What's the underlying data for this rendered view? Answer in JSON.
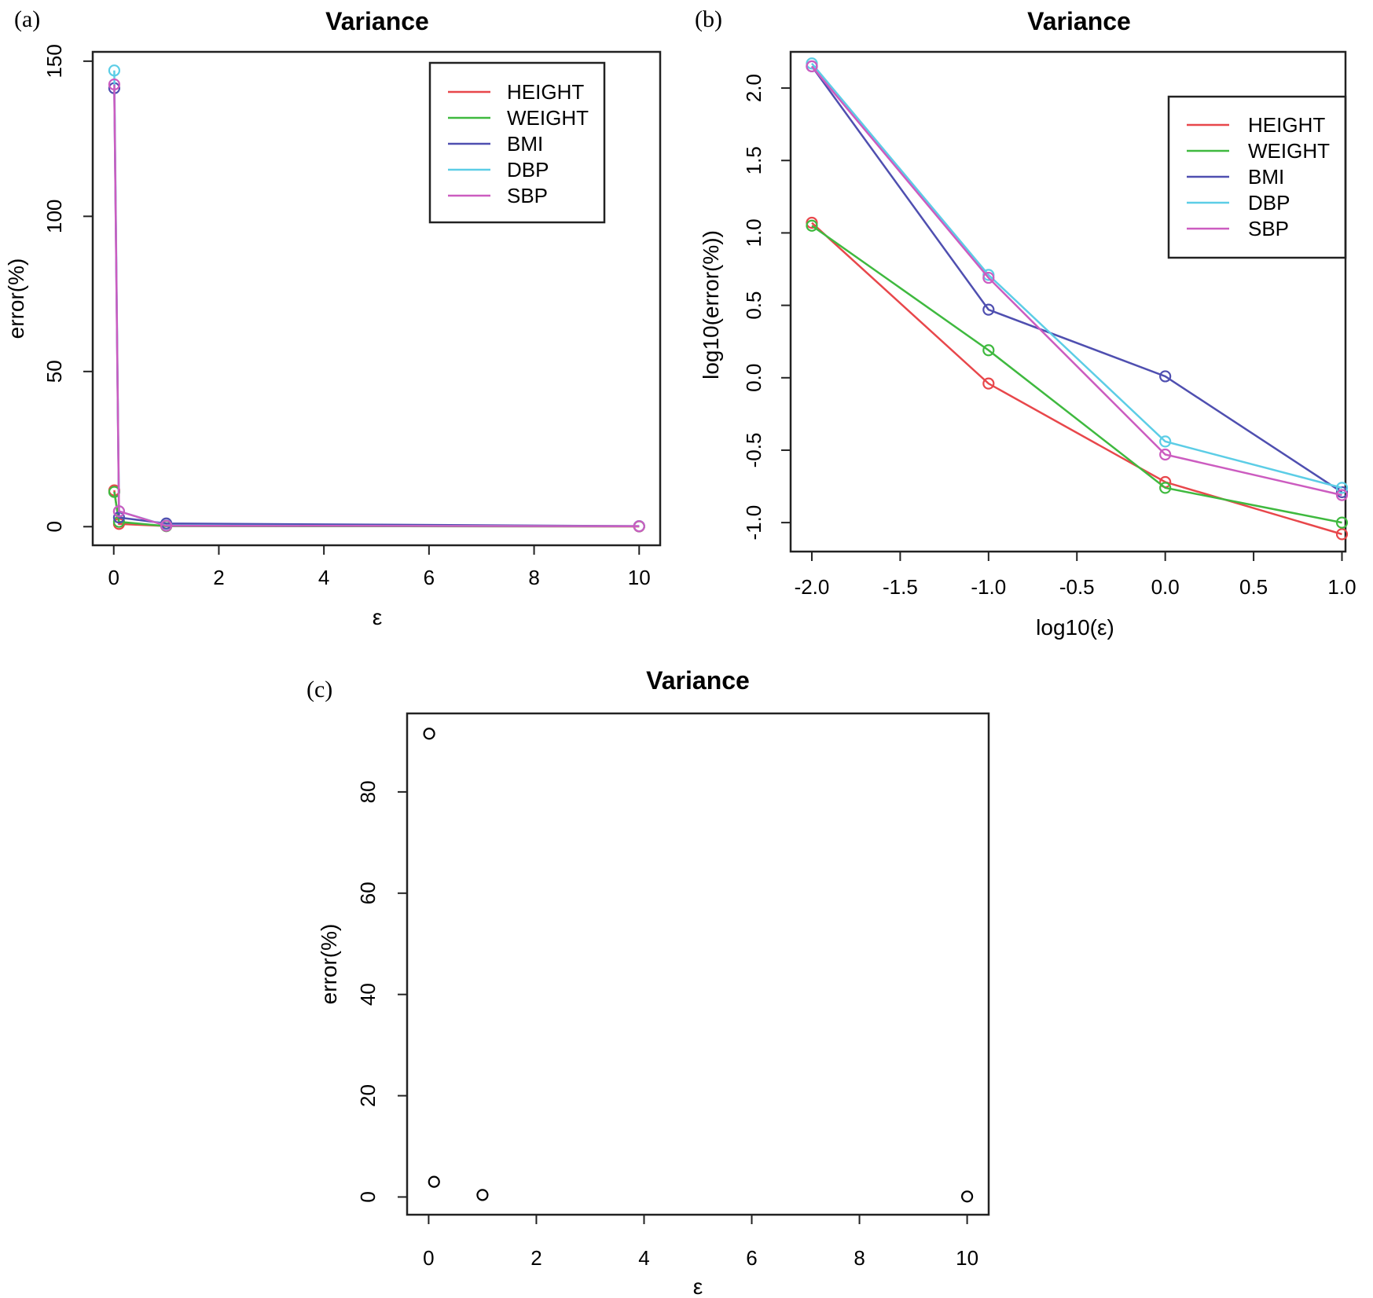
{
  "chart_data": [
    {
      "panel_label": "(a)",
      "type": "line",
      "title": "Variance",
      "xlabel": "ε",
      "ylabel": "error(%)",
      "xlim": [
        -0.4,
        10.4
      ],
      "ylim": [
        -6,
        153
      ],
      "xticks": [
        0,
        2,
        4,
        6,
        8,
        10
      ],
      "yticks": [
        0,
        50,
        100,
        150
      ],
      "legend": "top-right",
      "grid": false,
      "x": [
        0.01,
        0.1,
        1,
        10
      ],
      "series": [
        {
          "name": "HEIGHT",
          "color": "#e8474b",
          "values": [
            11.7,
            0.9,
            0.19,
            0.08
          ]
        },
        {
          "name": "WEIGHT",
          "color": "#3fb93f",
          "values": [
            11.2,
            1.55,
            0.17,
            0.1
          ]
        },
        {
          "name": "BMI",
          "color": "#4f4fb0",
          "values": [
            141.3,
            2.95,
            1.03,
            0.16
          ]
        },
        {
          "name": "DBP",
          "color": "#5ccde6",
          "values": [
            147.0,
            4.95,
            0.36,
            0.17
          ]
        },
        {
          "name": "SBP",
          "color": "#cc5cc0",
          "values": [
            142.5,
            4.95,
            0.29,
            0.15
          ]
        }
      ]
    },
    {
      "panel_label": "(b)",
      "type": "line",
      "title": "Variance",
      "xlabel": "log10(ε)",
      "ylabel": "log10(error(%))",
      "xlim": [
        -2.12,
        1.02
      ],
      "ylim": [
        -1.2,
        2.25
      ],
      "xticks": [
        "-2.0",
        "-1.5",
        "-1.0",
        "-0.5",
        "0.0",
        "0.5",
        "1.0"
      ],
      "yticks": [
        "-1.0",
        "-0.5",
        "0.0",
        "0.5",
        "1.0",
        "1.5",
        "2.0"
      ],
      "legend": "top-right",
      "grid": false,
      "x": [
        -2,
        -1,
        0,
        1
      ],
      "series": [
        {
          "name": "HEIGHT",
          "color": "#e8474b",
          "values": [
            1.07,
            -0.04,
            -0.72,
            -1.08
          ]
        },
        {
          "name": "WEIGHT",
          "color": "#3fb93f",
          "values": [
            1.05,
            0.19,
            -0.76,
            -1.0
          ]
        },
        {
          "name": "BMI",
          "color": "#4f4fb0",
          "values": [
            2.15,
            0.47,
            0.01,
            -0.79
          ]
        },
        {
          "name": "DBP",
          "color": "#5ccde6",
          "values": [
            2.17,
            0.71,
            -0.44,
            -0.76
          ]
        },
        {
          "name": "SBP",
          "color": "#cc5cc0",
          "values": [
            2.15,
            0.69,
            -0.53,
            -0.81
          ]
        }
      ]
    },
    {
      "panel_label": "(c)",
      "type": "scatter",
      "title": "Variance",
      "xlabel": "ε",
      "ylabel": "error(%)",
      "xlim": [
        -0.4,
        10.4
      ],
      "ylim": [
        -3.5,
        95.5
      ],
      "xticks": [
        0,
        2,
        4,
        6,
        8,
        10
      ],
      "yticks": [
        0,
        20,
        40,
        60,
        80
      ],
      "grid": false,
      "series": [
        {
          "color": "#000000",
          "x": [
            0.01,
            0.1,
            1,
            10
          ],
          "values": [
            91.5,
            3.0,
            0.4,
            0.1
          ]
        }
      ]
    }
  ]
}
